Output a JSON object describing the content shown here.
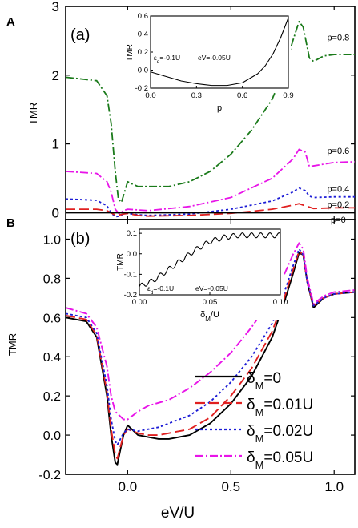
{
  "figure": {
    "xlabel": "eV/U"
  },
  "chart_data": [
    {
      "type": "line",
      "panel_letter": "A",
      "panel_tag": "(a)",
      "ylabel": "TMR",
      "xlim": [
        -0.3,
        1.1
      ],
      "ylim": [
        -0.1,
        3.0
      ],
      "yticks": [
        0,
        1,
        2,
        3
      ],
      "grid": false,
      "series": [
        {
          "name": "p=0.8",
          "color": "#1a7a1a",
          "dash": "10,3,2,3",
          "x": [
            -0.3,
            -0.15,
            -0.1,
            -0.08,
            -0.06,
            -0.045,
            -0.03,
            -0.015,
            0.0,
            0.02,
            0.05,
            0.1,
            0.2,
            0.3,
            0.4,
            0.5,
            0.6,
            0.7,
            0.76,
            0.8,
            0.83,
            0.85,
            0.87,
            0.88,
            0.9,
            0.95,
            1.0,
            1.1
          ],
          "y": [
            1.97,
            1.92,
            1.7,
            1.3,
            0.6,
            0.2,
            0.15,
            0.3,
            0.45,
            0.42,
            0.38,
            0.38,
            0.38,
            0.45,
            0.6,
            0.85,
            1.2,
            1.65,
            2.1,
            2.5,
            2.78,
            2.7,
            2.4,
            2.25,
            2.2,
            2.28,
            2.3,
            2.3
          ]
        },
        {
          "name": "p=0.6",
          "color": "#e815e8",
          "dash": "10,3,2,3",
          "x": [
            -0.3,
            -0.15,
            -0.1,
            -0.08,
            -0.06,
            -0.04,
            -0.02,
            0.0,
            0.05,
            0.1,
            0.3,
            0.5,
            0.7,
            0.8,
            0.83,
            0.86,
            0.88,
            0.9,
            1.0,
            1.1
          ],
          "y": [
            0.6,
            0.57,
            0.45,
            0.3,
            0.05,
            -0.02,
            0.03,
            0.05,
            0.04,
            0.03,
            0.09,
            0.22,
            0.5,
            0.78,
            0.92,
            0.88,
            0.67,
            0.68,
            0.73,
            0.74
          ]
        },
        {
          "name": "p=0.4",
          "color": "#1c1cd6",
          "dash": "3,3",
          "x": [
            -0.3,
            -0.15,
            -0.1,
            -0.08,
            -0.06,
            -0.04,
            -0.02,
            0.0,
            0.05,
            0.1,
            0.3,
            0.5,
            0.7,
            0.8,
            0.83,
            0.86,
            0.88,
            0.9,
            1.0,
            1.1
          ],
          "y": [
            0.2,
            0.18,
            0.1,
            0.0,
            -0.06,
            -0.05,
            -0.02,
            -0.01,
            -0.03,
            -0.04,
            -0.02,
            0.05,
            0.17,
            0.3,
            0.36,
            0.32,
            0.24,
            0.22,
            0.23,
            0.23
          ]
        },
        {
          "name": "p=0.2",
          "color": "#e02020",
          "dash": "12,5",
          "x": [
            -0.3,
            -0.15,
            -0.1,
            -0.07,
            -0.05,
            -0.02,
            0.0,
            0.05,
            0.1,
            0.3,
            0.5,
            0.7,
            0.8,
            0.83,
            0.86,
            0.9,
            1.0,
            1.1
          ],
          "y": [
            0.05,
            0.05,
            0.03,
            -0.02,
            -0.04,
            -0.02,
            -0.01,
            -0.04,
            -0.05,
            -0.04,
            -0.01,
            0.05,
            0.11,
            0.13,
            0.1,
            0.06,
            0.07,
            0.07
          ]
        },
        {
          "name": "p=0",
          "color": "#000000",
          "dash": "",
          "x": [
            -0.3,
            1.1
          ],
          "y": [
            0,
            0
          ]
        }
      ],
      "inset": {
        "xlabel": "p",
        "ylabel": "TMR",
        "xlim": [
          0.0,
          0.9
        ],
        "ylim": [
          -0.2,
          0.6
        ],
        "xticks": [
          0.0,
          0.3,
          0.6,
          0.9
        ],
        "xtick_labels": [
          "0.0",
          "0.3",
          "0.6",
          "0.9"
        ],
        "yticks": [
          -0.2,
          0.0,
          0.2,
          0.4,
          0.6
        ],
        "ytick_labels": [
          "-0.2",
          "0.0",
          "0.2",
          "0.4",
          "0.6"
        ],
        "annotation_eps_pre": "ε",
        "annotation_eps_sub": "d",
        "annotation_eps_post": "=-0.1U",
        "annotation_ev": "eV=-0.05U",
        "x": [
          0.0,
          0.1,
          0.2,
          0.3,
          0.4,
          0.5,
          0.6,
          0.7,
          0.75,
          0.8,
          0.85,
          0.9
        ],
        "y": [
          -0.02,
          -0.07,
          -0.12,
          -0.15,
          -0.17,
          -0.17,
          -0.14,
          -0.04,
          0.05,
          0.18,
          0.36,
          0.58
        ]
      }
    },
    {
      "type": "line",
      "panel_letter": "B",
      "panel_tag": "(b)",
      "ylabel": "TMR",
      "xlim": [
        -0.3,
        1.1
      ],
      "ylim": [
        -0.2,
        1.1
      ],
      "yticks": [
        -0.2,
        0.0,
        0.2,
        0.4,
        0.6,
        0.8,
        1.0
      ],
      "ytick_labels": [
        "-0.2",
        "0.0",
        "0.2",
        "0.4",
        "0.6",
        "0.8",
        "1.0"
      ],
      "xticks": [
        0.0,
        0.5,
        1.0
      ],
      "xtick_labels": [
        "0.0",
        "0.5",
        "1.0"
      ],
      "grid": false,
      "legend_position": "bottom-right",
      "series": [
        {
          "name_pre": "δ",
          "name_sub": "M",
          "name_post": "=0",
          "color": "#000000",
          "dash": "",
          "x": [
            -0.3,
            -0.2,
            -0.15,
            -0.1,
            -0.08,
            -0.06,
            -0.05,
            -0.04,
            -0.02,
            0.0,
            0.02,
            0.05,
            0.1,
            0.15,
            0.2,
            0.3,
            0.4,
            0.5,
            0.6,
            0.7,
            0.75,
            0.8,
            0.83,
            0.85,
            0.87,
            0.9,
            0.95,
            1.0,
            1.1
          ],
          "y": [
            0.6,
            0.58,
            0.5,
            0.2,
            0.0,
            -0.14,
            -0.15,
            -0.1,
            0.0,
            0.05,
            0.03,
            0.0,
            -0.01,
            -0.02,
            -0.02,
            0.0,
            0.06,
            0.16,
            0.3,
            0.5,
            0.65,
            0.82,
            0.93,
            0.92,
            0.78,
            0.65,
            0.7,
            0.72,
            0.73
          ]
        },
        {
          "name_pre": "δ",
          "name_sub": "M",
          "name_post": "=0.01U",
          "color": "#e02020",
          "dash": "12,5",
          "x": [
            -0.3,
            -0.2,
            -0.15,
            -0.1,
            -0.08,
            -0.06,
            -0.05,
            -0.04,
            -0.02,
            0.0,
            0.05,
            0.1,
            0.15,
            0.2,
            0.3,
            0.4,
            0.5,
            0.6,
            0.7,
            0.75,
            0.8,
            0.83,
            0.85,
            0.87,
            0.9,
            0.95,
            1.0,
            1.1
          ],
          "y": [
            0.61,
            0.59,
            0.51,
            0.22,
            0.03,
            -0.1,
            -0.12,
            -0.08,
            0.0,
            0.03,
            0.01,
            0.0,
            0.0,
            0.01,
            0.03,
            0.09,
            0.2,
            0.34,
            0.53,
            0.67,
            0.84,
            0.94,
            0.92,
            0.78,
            0.66,
            0.7,
            0.72,
            0.73
          ]
        },
        {
          "name_pre": "δ",
          "name_sub": "M",
          "name_post": "=0.02U",
          "color": "#1c1cd6",
          "dash": "3,3",
          "x": [
            -0.3,
            -0.2,
            -0.15,
            -0.1,
            -0.08,
            -0.06,
            -0.05,
            -0.04,
            -0.02,
            0.0,
            0.05,
            0.1,
            0.15,
            0.2,
            0.3,
            0.4,
            0.5,
            0.6,
            0.7,
            0.75,
            0.8,
            0.83,
            0.85,
            0.87,
            0.9,
            0.95,
            1.0,
            1.1
          ],
          "y": [
            0.62,
            0.6,
            0.52,
            0.25,
            0.08,
            -0.03,
            -0.05,
            -0.03,
            0.01,
            0.03,
            0.02,
            0.03,
            0.04,
            0.06,
            0.1,
            0.17,
            0.27,
            0.4,
            0.57,
            0.7,
            0.86,
            0.95,
            0.92,
            0.78,
            0.66,
            0.7,
            0.72,
            0.73
          ]
        },
        {
          "name_pre": "δ",
          "name_sub": "M",
          "name_post": "=0.05U",
          "color": "#e815e8",
          "dash": "10,3,2,3",
          "x": [
            -0.3,
            -0.2,
            -0.15,
            -0.1,
            -0.08,
            -0.06,
            -0.04,
            -0.02,
            0.0,
            0.05,
            0.1,
            0.2,
            0.3,
            0.4,
            0.5,
            0.6,
            0.7,
            0.75,
            0.8,
            0.83,
            0.85,
            0.87,
            0.9,
            0.95,
            1.0,
            1.1
          ],
          "y": [
            0.65,
            0.62,
            0.55,
            0.35,
            0.2,
            0.12,
            0.1,
            0.08,
            0.08,
            0.12,
            0.15,
            0.18,
            0.24,
            0.32,
            0.42,
            0.55,
            0.7,
            0.8,
            0.92,
            0.98,
            0.95,
            0.8,
            0.67,
            0.71,
            0.73,
            0.74
          ]
        }
      ],
      "inset": {
        "xlabel_pre": "δ",
        "xlabel_sub": "M",
        "xlabel_post": "/U",
        "ylabel": "TMR",
        "xlim": [
          0.0,
          0.1
        ],
        "ylim": [
          -0.2,
          0.12
        ],
        "xticks": [
          0.0,
          0.05,
          0.1
        ],
        "xtick_labels": [
          "0.00",
          "0.05",
          "0.10"
        ],
        "yticks": [
          -0.2,
          -0.1,
          0.0,
          0.1
        ],
        "ytick_labels": [
          "-0.2",
          "-0.1",
          "0.0",
          "0.1"
        ],
        "annotation_eps_pre": "ε",
        "annotation_eps_sub": "d",
        "annotation_eps_post": "=-0.1U",
        "annotation_ev": "eV=-0.05U",
        "trend_x": [
          0.0,
          0.01,
          0.02,
          0.03,
          0.04,
          0.05,
          0.06,
          0.07,
          0.08,
          0.09,
          0.1
        ],
        "trend_y": [
          -0.16,
          -0.13,
          -0.08,
          -0.03,
          0.02,
          0.06,
          0.08,
          0.09,
          0.09,
          0.09,
          0.09
        ]
      }
    }
  ]
}
